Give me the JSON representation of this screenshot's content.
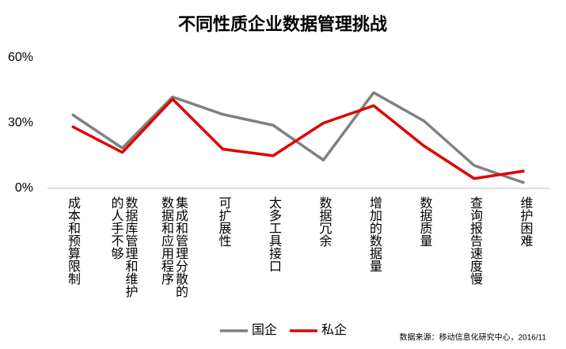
{
  "chart_data": {
    "type": "line",
    "title": "不同性质企业数据管理挑战",
    "categories": [
      "成本和预算限制",
      "数据库管理和维护的人手不够",
      "集成和管理分散的数据和应用程序",
      "可扩展性",
      "太多工具接口",
      "数据冗余",
      "增加的数据量",
      "数据质量",
      "查询报告速度慢",
      "维护困难"
    ],
    "series": [
      {
        "name": "国企",
        "color": "#808080",
        "values": [
          34,
          18.5,
          42,
          34,
          29,
          13,
          44,
          31,
          10.5,
          2.5
        ]
      },
      {
        "name": "私企",
        "color": "#e00000",
        "values": [
          28.5,
          16.5,
          41,
          18,
          15,
          30,
          38,
          19.5,
          4.5,
          8
        ]
      }
    ],
    "ylim": [
      0,
      60
    ],
    "yticks": [
      {
        "value": 0,
        "label": "0%"
      },
      {
        "value": 30,
        "label": "30%"
      },
      {
        "value": 60,
        "label": "60%"
      }
    ],
    "legend": "bottom",
    "source": "数据来源：移动信息化研究中心，2016/11"
  }
}
